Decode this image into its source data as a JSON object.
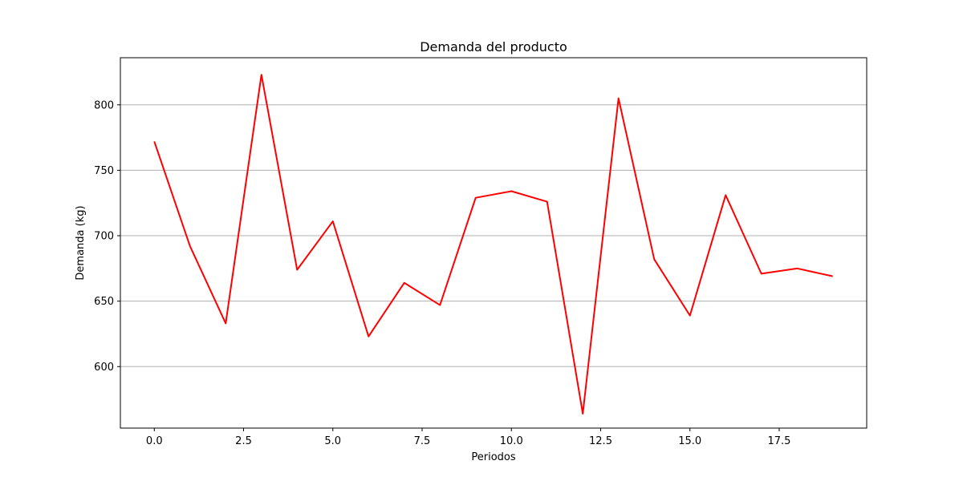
{
  "chart_data": {
    "type": "line",
    "title": "Demanda del producto",
    "xlabel": "Periodos",
    "ylabel": "Demanda (kg)",
    "xlim": [
      -0.95,
      19.95
    ],
    "ylim": [
      553,
      836
    ],
    "x_ticks": [
      0,
      2.5,
      5,
      7.5,
      10,
      12.5,
      15,
      17.5
    ],
    "x_tick_labels": [
      "0.0",
      "2.5",
      "5.0",
      "7.5",
      "10.0",
      "12.5",
      "15.0",
      "17.5"
    ],
    "y_ticks": [
      600,
      650,
      700,
      750,
      800
    ],
    "y_tick_labels": [
      "600",
      "650",
      "700",
      "750",
      "800"
    ],
    "grid": "horizontal",
    "series": [
      {
        "color": "#ff0000",
        "x": [
          0,
          1,
          2,
          3,
          4,
          5,
          6,
          7,
          8,
          9,
          10,
          11,
          12,
          13,
          14,
          15,
          16,
          17,
          18,
          19
        ],
        "values": [
          772,
          692,
          633,
          823,
          674,
          711,
          623,
          664,
          647,
          729,
          734,
          726,
          564,
          805,
          682,
          639,
          731,
          671,
          675,
          669
        ]
      }
    ]
  }
}
